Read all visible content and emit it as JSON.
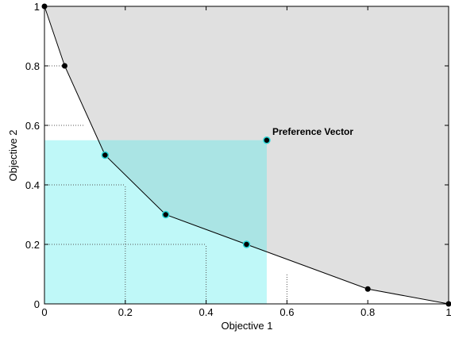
{
  "chart_data": {
    "type": "line",
    "title": "",
    "xlabel": "Objective 1",
    "ylabel": "Objective 2",
    "xlim": [
      0,
      1
    ],
    "ylim": [
      0,
      1
    ],
    "xticks": [
      0,
      0.2,
      0.4,
      0.6,
      0.8,
      1
    ],
    "yticks": [
      0,
      0.2,
      0.4,
      0.6,
      0.8,
      1
    ],
    "xtick_labels": [
      "0",
      "0.2",
      "0.4",
      "0.6",
      "0.8",
      "1"
    ],
    "ytick_labels": [
      "0",
      "0.2",
      "0.4",
      "0.6",
      "0.8",
      "1"
    ],
    "grid": false,
    "colors": {
      "dominated_region": "#e0e0e0",
      "preference_box": "#bff8f8",
      "overlap": "#aae4e4",
      "highlight_marker": "#2ad4d4",
      "line": "#000000"
    },
    "front": {
      "x": [
        0,
        0.05,
        0.15,
        0.3,
        0.5,
        0.8,
        1
      ],
      "y": [
        1,
        0.8,
        0.5,
        0.3,
        0.2,
        0.05,
        0
      ]
    },
    "highlighted_points": {
      "x": [
        0.15,
        0.3,
        0.5
      ],
      "y": [
        0.5,
        0.3,
        0.2
      ]
    },
    "preference_vector": {
      "x": 0.55,
      "y": 0.55,
      "label": "Preference Vector"
    },
    "reference_lines": [
      {
        "orientation": "horizontal",
        "y": 0.8,
        "x_to": 0.05
      },
      {
        "orientation": "horizontal",
        "y": 0.6,
        "x_to": 0.1
      },
      {
        "orientation": "horizontal",
        "y": 0.4,
        "x_to": 0.2
      },
      {
        "orientation": "horizontal",
        "y": 0.2,
        "x_to": 0.4
      },
      {
        "orientation": "vertical",
        "x": 0.2,
        "y_to": 0.4
      },
      {
        "orientation": "vertical",
        "x": 0.4,
        "y_to": 0.2
      },
      {
        "orientation": "vertical",
        "x": 0.6,
        "y_to": 0.1
      }
    ]
  }
}
